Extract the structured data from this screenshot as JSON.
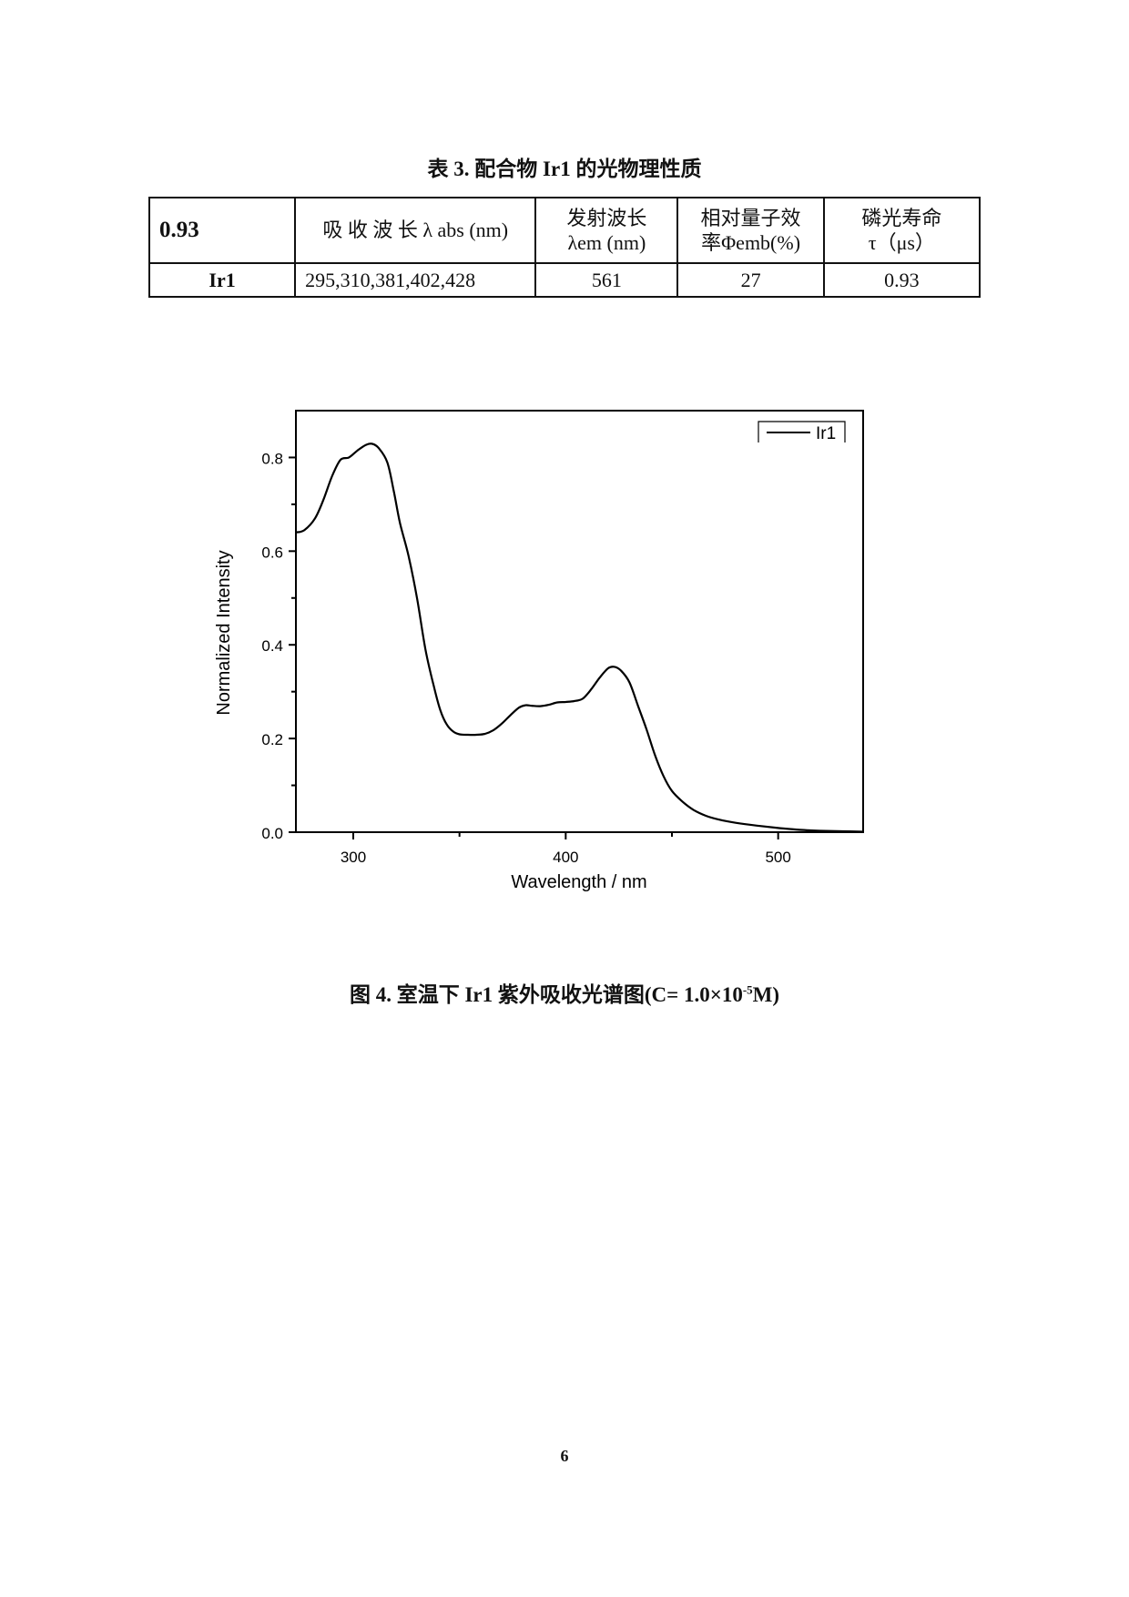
{
  "table": {
    "title": "表 3. 配合物 Ir1 的光物理性质",
    "header": [
      {
        "line1": "0.93",
        "line2": ""
      },
      {
        "line1": "吸 收 波 长 λ abs  (nm)",
        "line2": ""
      },
      {
        "line1": "发射波长",
        "line2": "λem (nm)"
      },
      {
        "line1": "相对量子效",
        "line2": "率Φemb(%)"
      },
      {
        "line1": "磷光寿命",
        "line2": "τ（μs）"
      }
    ],
    "rows": [
      [
        "Ir1",
        "295,310,381,402,428",
        "561",
        "27",
        "0.93"
      ]
    ]
  },
  "figure": {
    "caption_main": "图 4. 室温下 Ir1 紫外吸收光谱图(C= 1.0×10",
    "caption_exp": "-5",
    "caption_end": "M)"
  },
  "page_number": "6",
  "chart_data": {
    "type": "line",
    "title": "",
    "xlabel": "Wavelength  /  nm",
    "ylabel": "Normalized  Intensity",
    "xlim": [
      273,
      540
    ],
    "ylim": [
      0,
      0.9
    ],
    "x_ticks": [
      300,
      400,
      500
    ],
    "x_minor_ticks": [
      350,
      450
    ],
    "y_ticks": [
      "0.0",
      "0.2",
      "0.4",
      "0.6",
      "0.8"
    ],
    "y_minor_ticks": [
      0.1,
      0.3,
      0.5,
      0.7
    ],
    "grid": false,
    "legend": {
      "position": "top-right",
      "entries": [
        "Ir1"
      ]
    },
    "series": [
      {
        "name": "Ir1",
        "color": "#000000",
        "x": [
          273,
          277,
          282,
          286,
          290,
          294,
          298,
          302,
          306,
          309,
          312,
          316,
          319,
          322,
          326,
          330,
          334,
          338,
          341,
          344,
          347,
          350,
          354,
          358,
          362,
          366,
          370,
          374,
          378,
          381,
          384,
          388,
          392,
          396,
          400,
          404,
          408,
          412,
          416,
          420,
          423,
          426,
          430,
          434,
          438,
          442,
          446,
          450,
          455,
          460,
          466,
          472,
          480,
          490,
          500,
          510,
          520,
          530,
          540
        ],
        "values": [
          0.64,
          0.645,
          0.67,
          0.71,
          0.76,
          0.795,
          0.8,
          0.815,
          0.827,
          0.829,
          0.82,
          0.79,
          0.73,
          0.66,
          0.59,
          0.5,
          0.39,
          0.31,
          0.26,
          0.23,
          0.215,
          0.209,
          0.208,
          0.208,
          0.21,
          0.218,
          0.232,
          0.25,
          0.266,
          0.271,
          0.27,
          0.269,
          0.272,
          0.277,
          0.278,
          0.28,
          0.285,
          0.305,
          0.33,
          0.35,
          0.353,
          0.345,
          0.32,
          0.27,
          0.22,
          0.165,
          0.12,
          0.088,
          0.065,
          0.048,
          0.035,
          0.027,
          0.02,
          0.014,
          0.009,
          0.005,
          0.003,
          0.002,
          0.001
        ]
      }
    ]
  }
}
